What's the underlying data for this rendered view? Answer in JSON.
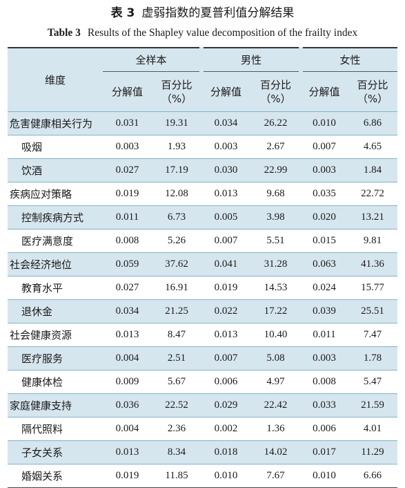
{
  "caption": {
    "cn_label": "表 3",
    "cn_title": "虚弱指数的夏普利值分解结果",
    "en_label": "Table 3",
    "en_title": "Results of the Shapley value decomposition of the frailty index"
  },
  "header": {
    "dimension": "维度",
    "groups": [
      "全样本",
      "男性",
      "女性"
    ],
    "sub_value": "分解值",
    "sub_pct_line1": "百分比",
    "sub_pct_line2": "（%）"
  },
  "rows": [
    {
      "label": "危害健康相关行为",
      "level": 0,
      "v": [
        "0.031",
        "19.31",
        "0.034",
        "26.22",
        "0.010",
        "6.86"
      ]
    },
    {
      "label": "吸烟",
      "level": 1,
      "v": [
        "0.003",
        "1.93",
        "0.003",
        "2.67",
        "0.007",
        "4.65"
      ]
    },
    {
      "label": "饮酒",
      "level": 1,
      "v": [
        "0.027",
        "17.19",
        "0.030",
        "22.99",
        "0.003",
        "1.84"
      ]
    },
    {
      "label": "疾病应对策略",
      "level": 0,
      "v": [
        "0.019",
        "12.08",
        "0.013",
        "9.68",
        "0.035",
        "22.72"
      ]
    },
    {
      "label": "控制疾病方式",
      "level": 1,
      "v": [
        "0.011",
        "6.73",
        "0.005",
        "3.98",
        "0.020",
        "13.21"
      ]
    },
    {
      "label": "医疗满意度",
      "level": 1,
      "v": [
        "0.008",
        "5.26",
        "0.007",
        "5.51",
        "0.015",
        "9.81"
      ]
    },
    {
      "label": "社会经济地位",
      "level": 0,
      "v": [
        "0.059",
        "37.62",
        "0.041",
        "31.28",
        "0.063",
        "41.36"
      ]
    },
    {
      "label": "教育水平",
      "level": 1,
      "v": [
        "0.027",
        "16.91",
        "0.019",
        "14.53",
        "0.024",
        "15.77"
      ]
    },
    {
      "label": "退休金",
      "level": 1,
      "v": [
        "0.034",
        "21.25",
        "0.022",
        "17.22",
        "0.039",
        "25.51"
      ]
    },
    {
      "label": "社会健康资源",
      "level": 0,
      "v": [
        "0.013",
        "8.47",
        "0.013",
        "10.40",
        "0.011",
        "7.47"
      ]
    },
    {
      "label": "医疗服务",
      "level": 1,
      "v": [
        "0.004",
        "2.51",
        "0.007",
        "5.08",
        "0.003",
        "1.78"
      ]
    },
    {
      "label": "健康体检",
      "level": 1,
      "v": [
        "0.009",
        "5.67",
        "0.006",
        "4.97",
        "0.008",
        "5.47"
      ]
    },
    {
      "label": "家庭健康支持",
      "level": 0,
      "v": [
        "0.036",
        "22.52",
        "0.029",
        "22.42",
        "0.033",
        "21.59"
      ]
    },
    {
      "label": "隔代照料",
      "level": 1,
      "v": [
        "0.004",
        "2.36",
        "0.002",
        "1.36",
        "0.006",
        "4.01"
      ]
    },
    {
      "label": "子女关系",
      "level": 1,
      "v": [
        "0.013",
        "8.34",
        "0.018",
        "14.02",
        "0.017",
        "11.29"
      ]
    },
    {
      "label": "婚姻关系",
      "level": 1,
      "v": [
        "0.019",
        "11.85",
        "0.010",
        "7.67",
        "0.010",
        "6.66"
      ]
    }
  ]
}
